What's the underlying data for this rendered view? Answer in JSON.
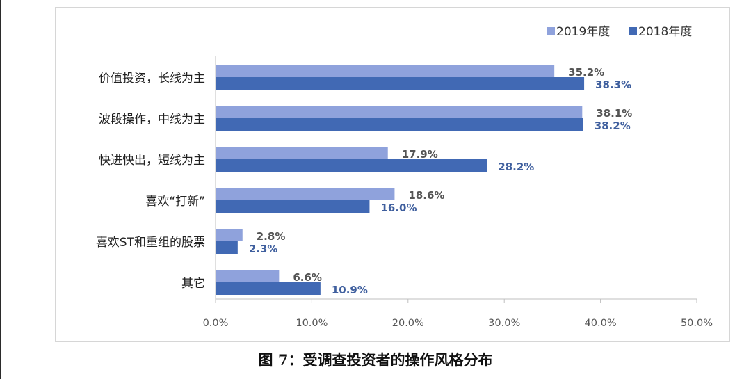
{
  "caption": "图 7：受调查投资者的操作风格分布",
  "chart_data": {
    "type": "bar",
    "orientation": "horizontal",
    "title": "",
    "xlabel": "",
    "ylabel": "",
    "categories": [
      "价值投资，长线为主",
      "波段操作，中线为主",
      "快进快出，短线为主",
      "喜欢“打新”",
      "喜欢ST和重组的股票",
      "其它"
    ],
    "series": [
      {
        "name": "2019年度",
        "color": "#8fa2dc",
        "values": [
          35.2,
          38.1,
          17.9,
          18.6,
          2.8,
          6.6
        ],
        "labels": [
          "35.2%",
          "38.1%",
          "17.9%",
          "18.6%",
          "2.8%",
          "6.6%"
        ]
      },
      {
        "name": "2018年度",
        "color": "#4169b4",
        "values": [
          38.3,
          38.2,
          28.2,
          16.0,
          2.3,
          10.9
        ],
        "labels": [
          "38.3%",
          "38.2%",
          "28.2%",
          "16.0%",
          "2.3%",
          "10.9%"
        ]
      }
    ],
    "xlim": [
      0,
      50
    ],
    "xticks": [
      0,
      10,
      20,
      30,
      40,
      50
    ],
    "xtick_labels": [
      "0.0%",
      "10.0%",
      "20.0%",
      "30.0%",
      "40.0%",
      "50.0%"
    ],
    "grid": false,
    "legend": "top-right",
    "value_label_colors": {
      "2019年度": "#555555",
      "2018年度": "#3f5f9e"
    }
  }
}
